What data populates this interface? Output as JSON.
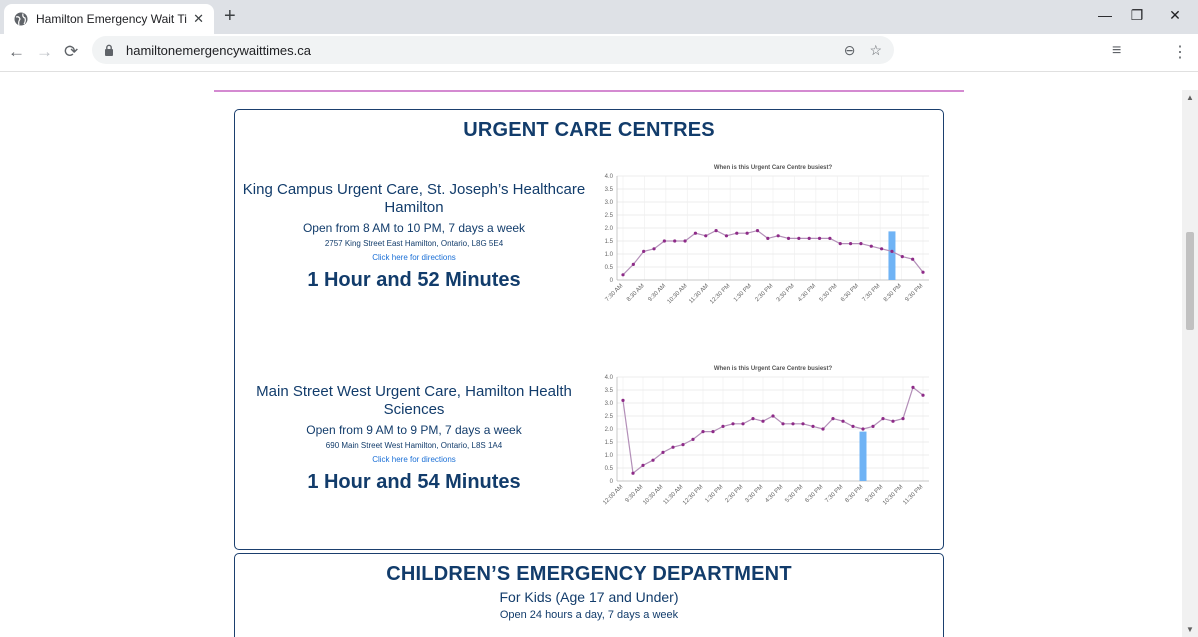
{
  "browser": {
    "tab_title": "Hamilton Emergency Wait Times",
    "tab_close": "✕",
    "new_tab": "+",
    "url": "hamiltonemergencywaittimes.ca",
    "back": "←",
    "forward": "→",
    "reload": "⟳",
    "zoom_icon": "⊖",
    "star_icon": "☆",
    "reading_list_icon": "≡",
    "menu_icon": "⋮",
    "minimize": "—",
    "restore": "❐",
    "close": "✕"
  },
  "page": {
    "urgent_title": "URGENT CARE CENTRES",
    "locations": [
      {
        "name": "King Campus Urgent Care, St. Joseph’s Healthcare Hamilton",
        "hours": "Open from 8 AM to 10 PM, 7 days a week",
        "address": "2757 King Street East Hamilton, Ontario, L8G 5E4",
        "directions": "Click here for directions",
        "wait": "1 Hour and 52 Minutes"
      },
      {
        "name": "Main Street West Urgent Care, Hamilton Health Sciences",
        "hours": "Open from 9 AM to 9 PM, 7 days a week",
        "address": "690 Main Street West Hamilton, Ontario, L8S 1A4",
        "directions": "Click here for directions",
        "wait": "1 Hour and 54 Minutes"
      }
    ],
    "children_title": "CHILDREN’S EMERGENCY DEPARTMENT",
    "children_subtitle": "For Kids (Age 17 and Under)",
    "children_hours": "Open 24 hours a day, 7 days a week"
  },
  "chart_data": [
    {
      "type": "line",
      "title": "When is this Urgent Care Centre busiest?",
      "ylim": [
        0,
        4.0
      ],
      "yticks": [
        "0",
        "0.5",
        "1.0",
        "1.5",
        "2.0",
        "2.5",
        "3.0",
        "3.5",
        "4.0"
      ],
      "xtick_labels": [
        "7:30 AM",
        "8:30 AM",
        "9:30 AM",
        "10:30 AM",
        "11:30 AM",
        "12:30 PM",
        "1:30 PM",
        "2:30 PM",
        "3:30 PM",
        "4:30 PM",
        "5:30 PM",
        "6:30 PM",
        "7:30 PM",
        "8:30 PM",
        "9:30 PM"
      ],
      "values": [
        0.2,
        0.6,
        1.1,
        1.2,
        1.5,
        1.5,
        1.5,
        1.8,
        1.7,
        1.9,
        1.7,
        1.8,
        1.8,
        1.9,
        1.6,
        1.7,
        1.6,
        1.6,
        1.6,
        1.6,
        1.6,
        1.4,
        1.4,
        1.4,
        1.3,
        1.2,
        1.1,
        0.9,
        0.8,
        0.3
      ],
      "current_bar": {
        "index": 26,
        "value": 1.87
      },
      "grid": true,
      "line_color": "#b38fb8",
      "point_color": "#8e2b88",
      "bar_color": "#6fb3f5"
    },
    {
      "type": "line",
      "title": "When is this Urgent Care Centre busiest?",
      "ylim": [
        0,
        4.0
      ],
      "yticks": [
        "0",
        "0.5",
        "1.0",
        "1.5",
        "2.0",
        "2.5",
        "3.0",
        "3.5",
        "4.0"
      ],
      "xtick_labels": [
        "12:00 AM",
        "9:30 AM",
        "10:30 AM",
        "11:30 AM",
        "12:30 PM",
        "1:30 PM",
        "2:30 PM",
        "3:30 PM",
        "4:30 PM",
        "5:30 PM",
        "6:30 PM",
        "7:30 PM",
        "8:30 PM",
        "9:30 PM",
        "10:30 PM",
        "11:30 PM"
      ],
      "values": [
        3.1,
        0.3,
        0.6,
        0.8,
        1.1,
        1.3,
        1.4,
        1.6,
        1.9,
        1.9,
        2.1,
        2.2,
        2.2,
        2.4,
        2.3,
        2.5,
        2.2,
        2.2,
        2.2,
        2.1,
        2.0,
        2.4,
        2.3,
        2.1,
        2.0,
        2.1,
        2.4,
        2.3,
        2.4,
        3.6,
        3.3
      ],
      "current_bar": {
        "index": 24,
        "value": 1.9
      },
      "grid": true,
      "line_color": "#b38fb8",
      "point_color": "#8e2b88",
      "bar_color": "#6fb3f5"
    }
  ]
}
